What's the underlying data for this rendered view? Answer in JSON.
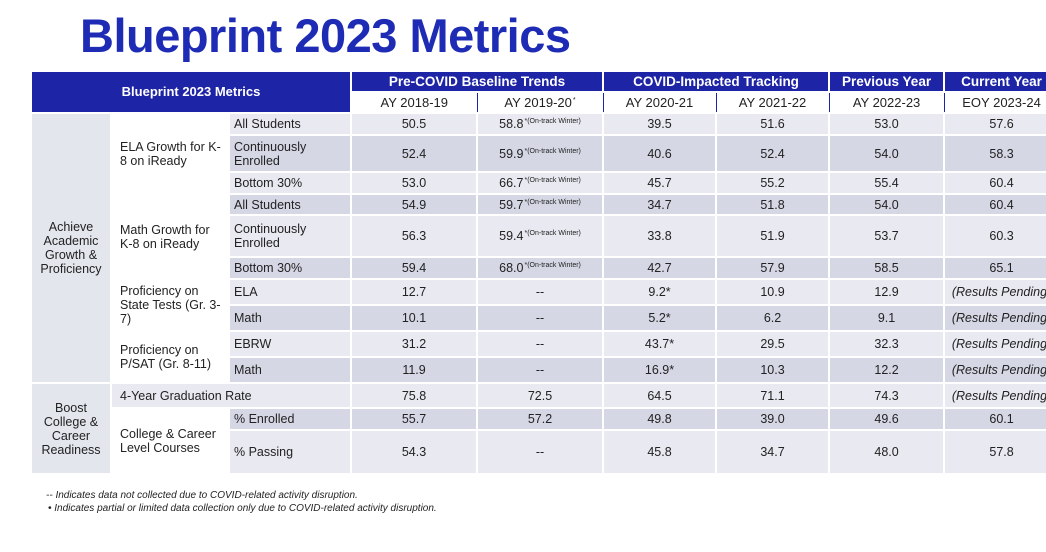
{
  "title": "Blueprint 2023 Metrics",
  "table": {
    "corner_label": "Blueprint 2023 Metrics",
    "groups": [
      {
        "label": "Pre-COVID Baseline Trends"
      },
      {
        "label": "COVID-Impacted Tracking"
      },
      {
        "label": "Previous Year"
      },
      {
        "label": "Current Year"
      }
    ],
    "years": [
      "AY 2018-19",
      "AY 2019-20",
      "AY 2020-21",
      "AY 2021-22",
      "AY 2022-23",
      "EOY 2023-24"
    ],
    "year_note": "*",
    "categories": [
      "Achieve Academic Growth & Proficiency",
      "Boost College & Career Readiness"
    ],
    "row_groups": [
      "ELA Growth for K-8 on iReady",
      "Math Growth for K-8 on iReady",
      "Proficiency on State Tests (Gr. 3-7)",
      "Proficiency on P/SAT (Gr. 8-11)",
      "4-Year Graduation Rate",
      "College & Career Level Courses"
    ],
    "rows": [
      {
        "label": "All Students",
        "values": [
          "50.5",
          "58.8",
          "39.5",
          "51.6",
          "53.0",
          "57.6"
        ],
        "note": "*(On-track Winter)"
      },
      {
        "label": "Continuously Enrolled",
        "values": [
          "52.4",
          "59.9",
          "40.6",
          "52.4",
          "54.0",
          "58.3"
        ],
        "note": "*(On-track Winter)"
      },
      {
        "label": "Bottom 30%",
        "values": [
          "53.0",
          "66.7",
          "45.7",
          "55.2",
          "55.4",
          "60.4"
        ],
        "note": "*(On-track Winter)"
      },
      {
        "label": "All Students",
        "values": [
          "54.9",
          "59.7",
          "34.7",
          "51.8",
          "54.0",
          "60.4"
        ],
        "note": "*(On-track Winter)"
      },
      {
        "label": "Continuously Enrolled",
        "values": [
          "56.3",
          "59.4",
          "33.8",
          "51.9",
          "53.7",
          "60.3"
        ],
        "note": "*(On-track Winter)"
      },
      {
        "label": "Bottom 30%",
        "values": [
          "59.4",
          "68.0",
          "42.7",
          "57.9",
          "58.5",
          "65.1"
        ],
        "note": "*(On-track Winter)"
      },
      {
        "label": "ELA",
        "values": [
          "12.7",
          "--",
          "9.2*",
          "10.9",
          "12.9",
          "(Results Pending)"
        ]
      },
      {
        "label": "Math",
        "values": [
          "10.1",
          "--",
          "5.2*",
          "6.2",
          "9.1",
          "(Results Pending)"
        ]
      },
      {
        "label": "EBRW",
        "values": [
          "31.2",
          "--",
          "43.7*",
          "29.5",
          "32.3",
          "(Results Pending)"
        ]
      },
      {
        "label": "Math",
        "values": [
          "11.9",
          "--",
          "16.9*",
          "10.3",
          "12.2",
          "(Results Pending)"
        ]
      },
      {
        "label": "",
        "values": [
          "75.8",
          "72.5",
          "64.5",
          "71.1",
          "74.3",
          "(Results Pending)"
        ]
      },
      {
        "label": "% Enrolled",
        "values": [
          "55.7",
          "57.2",
          "49.8",
          "39.0",
          "49.6",
          "60.1"
        ]
      },
      {
        "label": "% Passing",
        "values": [
          "54.3",
          "--",
          "45.8",
          "34.7",
          "48.0",
          "57.8"
        ]
      }
    ]
  },
  "footnotes": [
    "-- Indicates data not collected due to COVID-related activity disruption.",
    "•   Indicates partial or limited data collection only due to COVID-related activity disruption."
  ]
}
